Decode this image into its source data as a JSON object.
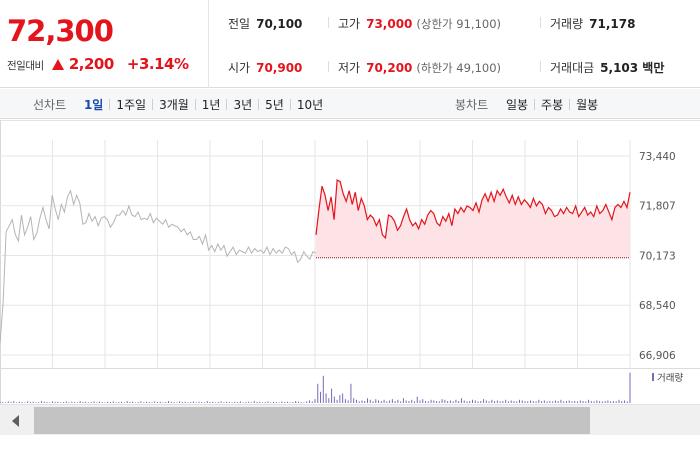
{
  "quote": {
    "price": "72,300",
    "change_label": "전일대비",
    "change_value": "2,200",
    "change_pct": "+3.14%",
    "rows": [
      [
        {
          "label": "전일",
          "value": "70,100",
          "red": false,
          "sub": ""
        },
        {
          "label": "고가",
          "value": "73,000",
          "red": true,
          "sub": "(상한가 91,100)"
        },
        {
          "label": "거래량",
          "value": "71,178",
          "red": false,
          "sub": ""
        }
      ],
      [
        {
          "label": "시가",
          "value": "70,900",
          "red": true,
          "sub": ""
        },
        {
          "label": "저가",
          "value": "70,200",
          "red": true,
          "sub": "(하한가 49,100)"
        },
        {
          "label": "거래대금",
          "value": "5,103 백만",
          "red": false,
          "sub": ""
        }
      ]
    ]
  },
  "tabs": {
    "left_title": "선차트",
    "left": [
      "1일",
      "1주일",
      "3개월",
      "1년",
      "3년",
      "5년",
      "10년"
    ],
    "left_active": 0,
    "right_title": "봉차트",
    "right": [
      "일봉",
      "주봉",
      "월봉"
    ]
  },
  "colors": {
    "up": "#e4141d",
    "prev_day_line": "#b4b4b4",
    "fill": "#fde3e5",
    "volume": "#7a68b8",
    "grid": "#e6e6e6"
  },
  "chart_data": {
    "type": "line",
    "y_ticks": [
      "73,440",
      "71,807",
      "70,173",
      "68,540",
      "66,906"
    ],
    "y_tick_values": [
      73440,
      71807,
      70173,
      68540,
      66906
    ],
    "ylim": [
      66906,
      73440
    ],
    "baseline": 70100,
    "legend_volume": "거래량",
    "series": [
      {
        "values": [
          67300,
          68600,
          70950,
          71150,
          71350,
          70850,
          70650,
          71500,
          70850,
          71100,
          71450,
          70700,
          70900,
          71400,
          71750,
          71350,
          71050,
          72150,
          71700,
          71350,
          71850,
          71600,
          72100,
          72300,
          71850,
          72150,
          71900,
          71200,
          71250,
          71550,
          71300,
          71450,
          71150,
          71400,
          71450,
          71350,
          71100,
          71250,
          71500,
          71500,
          71650,
          71500,
          71800,
          71500,
          71450,
          71600,
          71350,
          71400,
          71350,
          71550,
          71250,
          71400,
          71300,
          71200,
          71350,
          71100,
          71200,
          71150,
          71100,
          70950,
          71050,
          70850,
          70950,
          70700,
          70700,
          70800,
          70550,
          70850,
          70350,
          70500,
          70300,
          70550,
          70350,
          70500,
          70150,
          70300,
          70450,
          70200,
          70350,
          70300,
          70250,
          70450,
          70250,
          70400,
          70300,
          70350,
          70250,
          70450,
          70200,
          70400,
          70250,
          70350,
          70250,
          70450,
          70400,
          70200,
          70300,
          69950,
          70050,
          70300,
          70150,
          70050,
          70300,
          70250
        ]
      },
      {
        "values": [
          70850,
          71700,
          72450,
          72150,
          71650,
          72100,
          71350,
          72650,
          72600,
          72200,
          71950,
          72300,
          71850,
          72250,
          71650,
          72050,
          71800,
          71350,
          71500,
          71400,
          71150,
          71350,
          70850,
          70750,
          71500,
          71450,
          71300,
          71000,
          71150,
          71450,
          71700,
          71350,
          71150,
          71250,
          71050,
          71350,
          71200,
          71500,
          71650,
          71550,
          71250,
          71150,
          71450,
          71300,
          71550,
          71150,
          71700,
          71550,
          71750,
          71600,
          71800,
          71750,
          71650,
          71900,
          71600,
          72000,
          72200,
          71950,
          72250,
          71950,
          72300,
          72150,
          72350,
          72100,
          71900,
          72150,
          71850,
          72100,
          71850,
          72000,
          71900,
          71750,
          72050,
          71800,
          71950,
          71850,
          71550,
          71750,
          71650,
          71450,
          71500,
          71700,
          71550,
          71750,
          71600,
          71550,
          71800,
          71450,
          71600,
          71750,
          71500,
          71600,
          71450,
          71800,
          71550,
          71650,
          71850,
          71600,
          71350,
          71750,
          71850,
          71750,
          71950,
          71750,
          72250
        ]
      }
    ],
    "volume_ratio": [
      0.04,
      0.03,
      0.02,
      0.05,
      0.03,
      0.06,
      0.02,
      0.04,
      0.03,
      0.02,
      0.05,
      0.03,
      0.04,
      0.02,
      0.03,
      0.06,
      0.04,
      0.03,
      0.02,
      0.05,
      0.03,
      0.04,
      0.02,
      0.03,
      0.05,
      0.02,
      0.04,
      0.03,
      0.02,
      0.06,
      0.03,
      0.04,
      0.02,
      0.03,
      0.05,
      0.02,
      0.04,
      0.03,
      0.02,
      0.04,
      0.03,
      0.05,
      0.02,
      0.03,
      0.04,
      0.02,
      0.06,
      0.03,
      0.04,
      0.02,
      0.03,
      0.05,
      0.02,
      0.04,
      0.03,
      0.02,
      0.05,
      0.03,
      0.04,
      0.02,
      0.03,
      0.06,
      0.04,
      0.03,
      0.02,
      0.05,
      0.03,
      0.04,
      0.02,
      0.03,
      0.05,
      0.02,
      0.04,
      0.03,
      0.02,
      0.06,
      0.03,
      0.04,
      0.02,
      0.03,
      0.05,
      0.02,
      0.04,
      0.03,
      0.02,
      0.04,
      0.03,
      0.05,
      0.02,
      0.03,
      0.04,
      0.02,
      0.06,
      0.03,
      0.04,
      0.02,
      0.03,
      0.05,
      0.02,
      0.04,
      0.03,
      0.02,
      0.05,
      0.03,
      0.04,
      0.02,
      0.03,
      0.06,
      0.04,
      0.03,
      0.02,
      0.05,
      0.08,
      0.05,
      0.12,
      0.6,
      0.35,
      0.85,
      0.3,
      0.15,
      0.45,
      0.2,
      0.1,
      0.25,
      0.3,
      0.12,
      0.08,
      0.6,
      0.15,
      0.1,
      0.05,
      0.08,
      0.06,
      0.15,
      0.1,
      0.05,
      0.12,
      0.08,
      0.06,
      0.1,
      0.05,
      0.08,
      0.12,
      0.06,
      0.1,
      0.05,
      0.15,
      0.08,
      0.06,
      0.1,
      0.05,
      0.2,
      0.08,
      0.12,
      0.06,
      0.05,
      0.1,
      0.08,
      0.06,
      0.05,
      0.12,
      0.1,
      0.06,
      0.08,
      0.05,
      0.1,
      0.06,
      0.15,
      0.08,
      0.05,
      0.06,
      0.1,
      0.08,
      0.05,
      0.06,
      0.12,
      0.08,
      0.05,
      0.1,
      0.06,
      0.08,
      0.05,
      0.06,
      0.1,
      0.05,
      0.08,
      0.06,
      0.05,
      0.1,
      0.08,
      0.06,
      0.05,
      0.08,
      0.06,
      0.05,
      0.1,
      0.06,
      0.08,
      0.05,
      0.06,
      0.05,
      0.08,
      0.06,
      0.1,
      0.05,
      0.06,
      0.08,
      0.05,
      0.06,
      0.05,
      0.08,
      0.06,
      0.05,
      0.1,
      0.06,
      0.05,
      0.08,
      0.06,
      0.05,
      0.06,
      0.08,
      0.05,
      0.06,
      0.05,
      0.1,
      0.06,
      0.08,
      0.05,
      0.95
    ]
  }
}
